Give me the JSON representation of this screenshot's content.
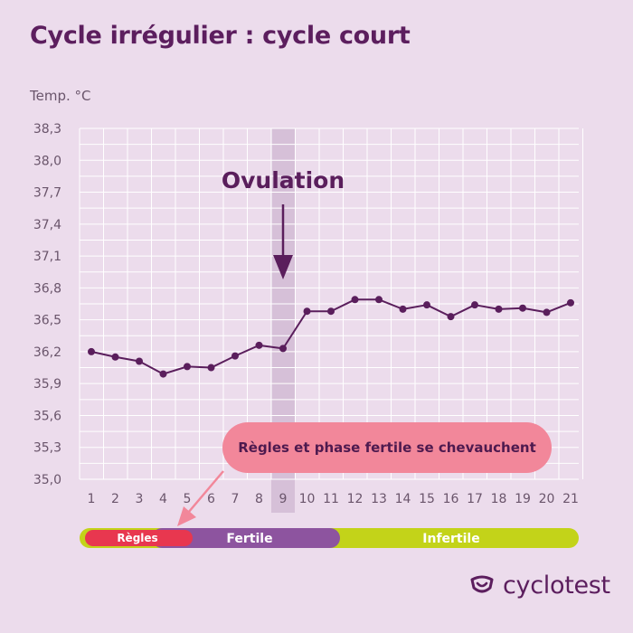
{
  "page": {
    "title": "Cycle irrégulier : cycle court",
    "brand": "cyclotest",
    "callout": "Règles et phase fertile se chevauchent"
  },
  "chart_data": {
    "type": "line",
    "title": "Cycle irrégulier : cycle court",
    "xlabel": "",
    "ylabel": "Temp. °C",
    "x": [
      1,
      2,
      3,
      4,
      5,
      6,
      7,
      8,
      9,
      10,
      11,
      12,
      13,
      14,
      15,
      16,
      17,
      18,
      19,
      20,
      21
    ],
    "y_ticks": [
      "38,3",
      "38,0",
      "37,7",
      "37,4",
      "37,1",
      "36,8",
      "36,5",
      "36,2",
      "35,9",
      "35,6",
      "35,3",
      "35,0"
    ],
    "ylim": [
      35.0,
      38.3
    ],
    "grid": true,
    "series": [
      {
        "values": [
          36.2,
          36.15,
          36.11,
          35.99,
          36.06,
          36.05,
          36.16,
          36.26,
          36.23,
          36.58,
          36.58,
          36.69,
          36.69,
          36.6,
          36.64,
          36.53,
          36.64,
          36.6,
          36.61,
          36.57,
          36.66
        ]
      }
    ],
    "highlight": {
      "day": 9,
      "label": "Ovulation"
    },
    "phases": [
      {
        "label": "Règles",
        "start_day": 1,
        "end_day": 5,
        "color": "#e8374f"
      },
      {
        "label": "Fertile",
        "start_day": 4,
        "end_day": 11,
        "color": "#8d549f"
      },
      {
        "label": "Infertile",
        "start_day": 11,
        "end_day": 21,
        "color": "#c3d319"
      }
    ],
    "colors": {
      "line": "#5a1e5c",
      "grid": "#ffffff",
      "highlight_band": "#d6c0d8",
      "axis_text": "#6a556b",
      "callout": "#f2879a",
      "arrow": "#f2879a"
    }
  }
}
